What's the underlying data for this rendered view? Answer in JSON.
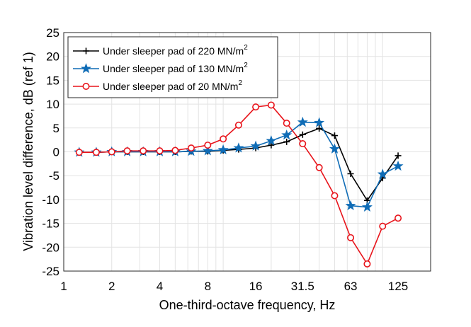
{
  "chart_data": {
    "type": "line",
    "xlabel": "One-third-octave frequency, Hz",
    "ylabel": "Vibration level difference, dB (ref 1)",
    "x_scale": "log",
    "xlim": [
      1,
      200
    ],
    "ylim": [
      -25,
      25
    ],
    "grid": true,
    "legend_position": "top-left",
    "x_ticks": [
      {
        "value": 1,
        "label": "1"
      },
      {
        "value": 2,
        "label": "2"
      },
      {
        "value": 4,
        "label": "4"
      },
      {
        "value": 8,
        "label": "8"
      },
      {
        "value": 16,
        "label": "16"
      },
      {
        "value": 31.5,
        "label": "31.5"
      },
      {
        "value": 63,
        "label": "63"
      },
      {
        "value": 125,
        "label": "125"
      }
    ],
    "y_ticks": [
      {
        "value": 25,
        "label": "25"
      },
      {
        "value": 20,
        "label": "20"
      },
      {
        "value": 15,
        "label": "15"
      },
      {
        "value": 10,
        "label": "10"
      },
      {
        "value": 5,
        "label": "5"
      },
      {
        "value": 0,
        "label": "0"
      },
      {
        "value": -5,
        "label": "-5"
      },
      {
        "value": -10,
        "label": "-10"
      },
      {
        "value": -15,
        "label": "-15"
      },
      {
        "value": -20,
        "label": "-20"
      },
      {
        "value": -25,
        "label": "-25"
      }
    ],
    "x": [
      1.25,
      1.6,
      2,
      2.5,
      3.15,
      4,
      5,
      6.3,
      8,
      10,
      12.5,
      16,
      20,
      25,
      31.5,
      40,
      50,
      63,
      80,
      100,
      125
    ],
    "series": [
      {
        "name": "Under sleeper pad of 220 MN/m",
        "name_sup": "2",
        "color": "#000000",
        "marker": "plus",
        "values": [
          -0.1,
          -0.1,
          0.0,
          0.0,
          0.0,
          0.0,
          0.0,
          0.1,
          0.1,
          0.3,
          0.5,
          0.8,
          1.4,
          2.1,
          3.6,
          4.9,
          3.4,
          -4.6,
          -10.2,
          -5.5,
          -0.8
        ]
      },
      {
        "name": "Under sleeper pad of 130 MN/m",
        "name_sup": "2",
        "color": "#0f6cb6",
        "marker": "star",
        "values": [
          -0.1,
          -0.1,
          0.0,
          0.0,
          0.0,
          0.0,
          0.0,
          0.1,
          0.2,
          0.4,
          0.8,
          1.2,
          2.3,
          3.5,
          6.2,
          6.1,
          0.6,
          -11.3,
          -11.6,
          -4.7,
          -3.0
        ]
      },
      {
        "name": "Under sleeper pad of 20 MN/m",
        "name_sup": "2",
        "color": "#e8141b",
        "marker": "circle",
        "values": [
          -0.1,
          -0.1,
          0.0,
          0.2,
          0.2,
          0.2,
          0.3,
          0.8,
          1.4,
          2.7,
          5.6,
          9.4,
          9.8,
          6.0,
          1.7,
          -3.3,
          -9.2,
          -18.0,
          -23.5,
          -15.6,
          -13.9
        ]
      }
    ]
  }
}
